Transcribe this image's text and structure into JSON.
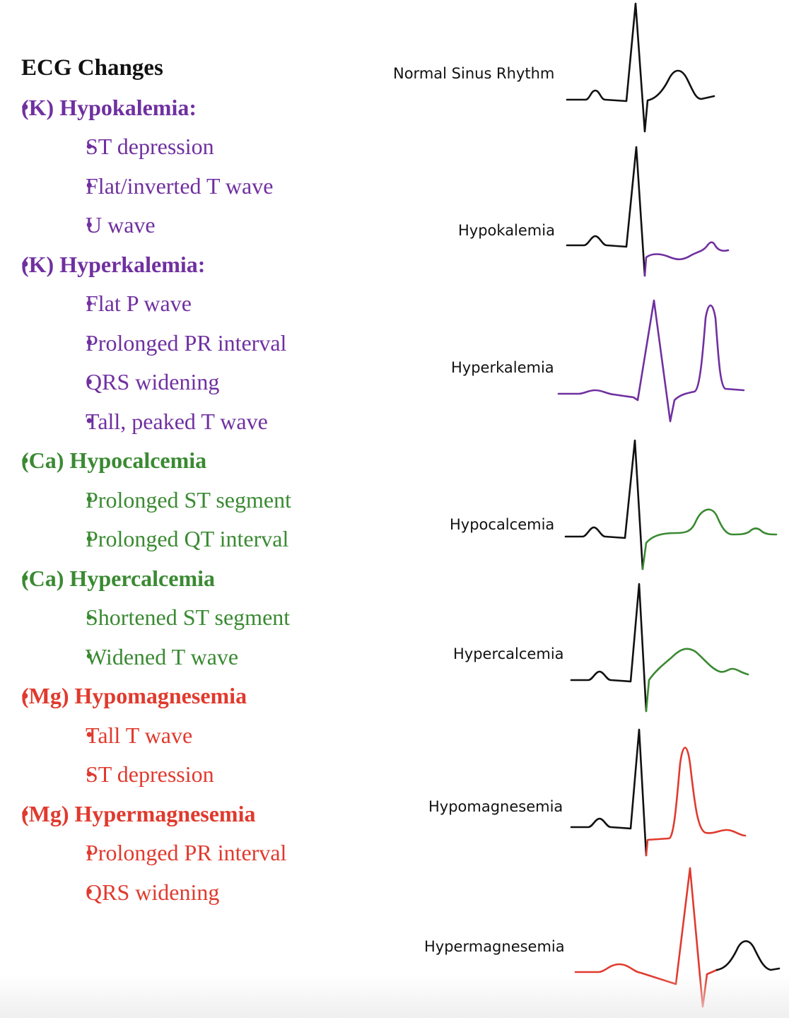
{
  "title": "ECG Changes",
  "colors": {
    "potassium": "#7030A0",
    "calcium": "#3A8A32",
    "magnesium": "#E03A2E",
    "baseline": "#111111",
    "text": "#111111"
  },
  "sections": [
    {
      "color_key": "potassium",
      "heading": "(K) Hypokalemia:",
      "items": [
        "ST depression",
        "Flat/inverted T wave",
        "U wave"
      ]
    },
    {
      "color_key": "potassium",
      "heading": "(K) Hyperkalemia:",
      "items": [
        "Flat P wave",
        "Prolonged PR interval",
        "QRS widening",
        "Tall, peaked T wave"
      ]
    },
    {
      "color_key": "calcium",
      "heading": " (Ca) Hypocalcemia",
      "items": [
        "Prolonged ST segment",
        "Prolonged QT interval"
      ]
    },
    {
      "color_key": "calcium",
      "heading": "(Ca) Hypercalcemia",
      "items": [
        "Shortened ST segment",
        "Widened T wave"
      ]
    },
    {
      "color_key": "magnesium",
      "heading": "(Mg) Hypomagnesemia",
      "items": [
        "Tall T wave",
        "ST depression"
      ]
    },
    {
      "color_key": "magnesium",
      "heading": "(Mg) Hypermagnesemia",
      "items": [
        "Prolonged PR interval",
        "QRS widening"
      ]
    }
  ],
  "ecg_labels": {
    "normal": "Normal Sinus Rhythm",
    "hypokalemia": "Hypokalemia",
    "hyperkalemia": "Hyperkalemia",
    "hypocalcemia": "Hypocalcemia",
    "hypercalcemia": "Hypercalcemia",
    "hypomagnesemia": "Hypomagnesemia",
    "hypermagnesemia": "Hypermagnesemia"
  }
}
